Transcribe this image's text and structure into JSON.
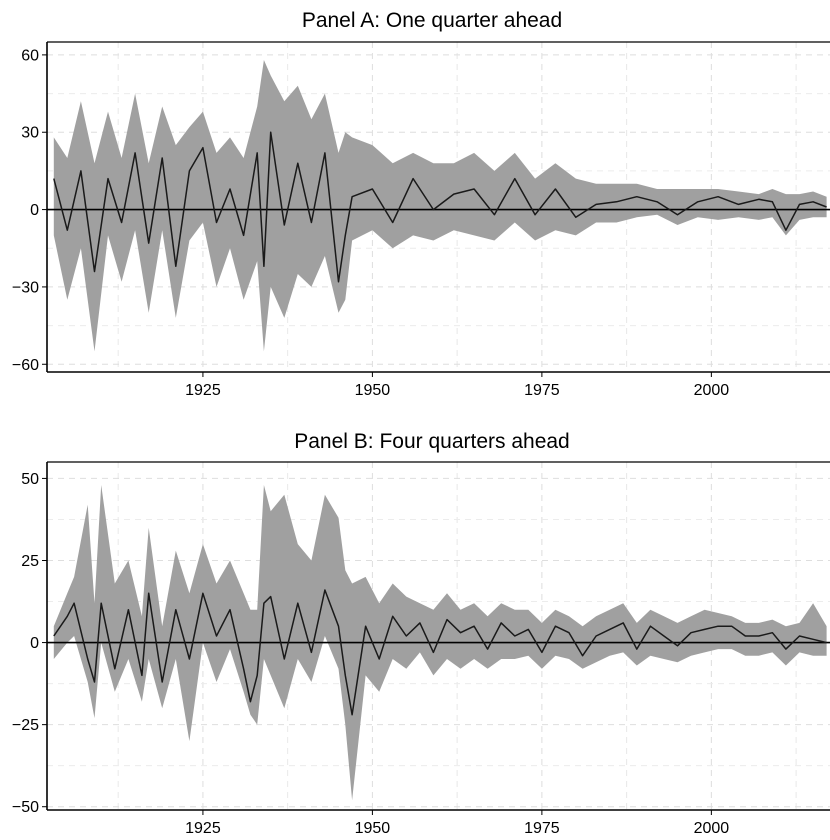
{
  "chart_data": [
    {
      "type": "area",
      "title": "Panel A: One quarter ahead",
      "xlabel": "",
      "ylabel": "",
      "xlim": [
        1902,
        2017.5
      ],
      "ylim": [
        -63,
        65
      ],
      "xticks": [
        "1925",
        "1950",
        "1975",
        "2000"
      ],
      "yticks": [
        "60",
        "30",
        "0",
        "−30",
        "−60"
      ],
      "ytick_values": [
        60,
        30,
        0,
        -30,
        -60
      ],
      "grid": true,
      "zero_line": 0,
      "band_color": "#a0a0a0",
      "line_color": "#1a1a1a",
      "series": [
        {
          "role": "point-forecast",
          "x": [
            1903,
            1905,
            1907,
            1909,
            1911,
            1913,
            1915,
            1917,
            1919,
            1921,
            1923,
            1925,
            1927,
            1929,
            1931,
            1933,
            1934,
            1935,
            1937,
            1939,
            1941,
            1943,
            1945,
            1946,
            1947,
            1950,
            1953,
            1956,
            1959,
            1962,
            1965,
            1968,
            1971,
            1974,
            1977,
            1980,
            1983,
            1986,
            1989,
            1992,
            1995,
            1998,
            2001,
            2004,
            2007,
            2009,
            2011,
            2013,
            2015,
            2017
          ],
          "values": [
            12,
            -8,
            15,
            -24,
            12,
            -5,
            22,
            -13,
            20,
            -22,
            15,
            24,
            -5,
            8,
            -10,
            22,
            -22,
            30,
            -6,
            18,
            -5,
            22,
            -28,
            -10,
            5,
            8,
            -5,
            12,
            0,
            6,
            8,
            -2,
            12,
            -2,
            8,
            -3,
            2,
            3,
            5,
            3,
            -2,
            3,
            5,
            2,
            4,
            3,
            -8,
            2,
            3,
            1
          ]
        },
        {
          "role": "band-upper",
          "x": [
            1903,
            1905,
            1907,
            1909,
            1911,
            1913,
            1915,
            1917,
            1919,
            1921,
            1923,
            1925,
            1927,
            1929,
            1931,
            1933,
            1934,
            1935,
            1937,
            1939,
            1941,
            1943,
            1945,
            1946,
            1947,
            1950,
            1953,
            1956,
            1959,
            1962,
            1965,
            1968,
            1971,
            1974,
            1977,
            1980,
            1983,
            1986,
            1989,
            1992,
            1995,
            1998,
            2001,
            2004,
            2007,
            2009,
            2011,
            2013,
            2015,
            2017
          ],
          "values": [
            28,
            20,
            42,
            18,
            38,
            20,
            45,
            18,
            40,
            25,
            32,
            38,
            22,
            28,
            20,
            40,
            58,
            52,
            42,
            48,
            35,
            45,
            22,
            30,
            28,
            25,
            18,
            22,
            18,
            18,
            22,
            15,
            22,
            12,
            18,
            12,
            10,
            10,
            10,
            8,
            8,
            8,
            8,
            7,
            6,
            8,
            6,
            6,
            7,
            5
          ]
        },
        {
          "role": "band-lower",
          "x": [
            1903,
            1905,
            1907,
            1909,
            1911,
            1913,
            1915,
            1917,
            1919,
            1921,
            1923,
            1925,
            1927,
            1929,
            1931,
            1933,
            1934,
            1935,
            1937,
            1939,
            1941,
            1943,
            1945,
            1946,
            1947,
            1950,
            1953,
            1956,
            1959,
            1962,
            1965,
            1968,
            1971,
            1974,
            1977,
            1980,
            1983,
            1986,
            1989,
            1992,
            1995,
            1998,
            2001,
            2004,
            2007,
            2009,
            2011,
            2013,
            2015,
            2017
          ],
          "values": [
            -10,
            -35,
            -15,
            -55,
            -10,
            -28,
            -8,
            -40,
            -8,
            -42,
            -12,
            -5,
            -30,
            -15,
            -35,
            -20,
            -55,
            -30,
            -42,
            -25,
            -30,
            -18,
            -40,
            -35,
            -12,
            -8,
            -15,
            -10,
            -12,
            -8,
            -10,
            -12,
            -5,
            -12,
            -8,
            -10,
            -5,
            -5,
            -3,
            -2,
            -6,
            -3,
            -4,
            -3,
            -4,
            -3,
            -10,
            -4,
            -3,
            -3
          ]
        }
      ]
    },
    {
      "type": "area",
      "title": "Panel B: Four quarters ahead",
      "xlabel": "",
      "ylabel": "",
      "xlim": [
        1902,
        2017.5
      ],
      "ylim": [
        -51,
        55
      ],
      "xticks": [
        "1925",
        "1950",
        "1975",
        "2000"
      ],
      "yticks": [
        "50",
        "25",
        "0",
        "−25",
        "−50"
      ],
      "ytick_values": [
        50,
        25,
        0,
        -25,
        -50
      ],
      "grid": true,
      "zero_line": 0,
      "band_color": "#a0a0a0",
      "line_color": "#1a1a1a",
      "series": [
        {
          "role": "point-forecast",
          "x": [
            1903,
            1905,
            1906,
            1908,
            1909,
            1910,
            1912,
            1914,
            1916,
            1917,
            1919,
            1921,
            1923,
            1925,
            1927,
            1929,
            1931,
            1932,
            1933,
            1934,
            1935,
            1937,
            1939,
            1941,
            1943,
            1945,
            1946,
            1947,
            1949,
            1951,
            1953,
            1955,
            1957,
            1959,
            1961,
            1963,
            1965,
            1967,
            1969,
            1971,
            1973,
            1975,
            1977,
            1979,
            1981,
            1983,
            1985,
            1987,
            1989,
            1991,
            1993,
            1995,
            1997,
            1999,
            2001,
            2003,
            2005,
            2007,
            2009,
            2011,
            2013,
            2015,
            2017
          ],
          "values": [
            2,
            8,
            12,
            -5,
            -12,
            12,
            -8,
            10,
            -10,
            15,
            -12,
            10,
            -5,
            15,
            2,
            10,
            -8,
            -18,
            -10,
            12,
            14,
            -5,
            12,
            -3,
            16,
            5,
            -10,
            -22,
            5,
            -5,
            8,
            2,
            6,
            -3,
            7,
            3,
            5,
            -2,
            6,
            2,
            4,
            -3,
            5,
            3,
            -4,
            2,
            4,
            6,
            -2,
            5,
            2,
            -1,
            3,
            4,
            5,
            5,
            2,
            2,
            3,
            -2,
            2,
            1,
            0
          ]
        },
        {
          "role": "band-upper",
          "x": [
            1903,
            1905,
            1906,
            1908,
            1909,
            1910,
            1912,
            1914,
            1916,
            1917,
            1919,
            1921,
            1923,
            1925,
            1927,
            1929,
            1931,
            1932,
            1933,
            1934,
            1935,
            1937,
            1939,
            1941,
            1943,
            1945,
            1946,
            1947,
            1949,
            1951,
            1953,
            1955,
            1957,
            1959,
            1961,
            1963,
            1965,
            1967,
            1969,
            1971,
            1973,
            1975,
            1977,
            1979,
            1981,
            1983,
            1985,
            1987,
            1989,
            1991,
            1993,
            1995,
            1997,
            1999,
            2001,
            2003,
            2005,
            2007,
            2009,
            2011,
            2013,
            2015,
            2017
          ],
          "values": [
            5,
            15,
            20,
            42,
            12,
            48,
            18,
            25,
            8,
            35,
            5,
            28,
            15,
            30,
            18,
            25,
            15,
            10,
            10,
            48,
            40,
            45,
            30,
            25,
            45,
            38,
            22,
            18,
            20,
            12,
            18,
            14,
            12,
            10,
            15,
            10,
            12,
            8,
            12,
            10,
            10,
            6,
            10,
            8,
            5,
            8,
            10,
            12,
            6,
            10,
            8,
            6,
            8,
            10,
            9,
            8,
            6,
            6,
            7,
            5,
            6,
            12,
            5
          ]
        },
        {
          "role": "band-lower",
          "x": [
            1903,
            1905,
            1906,
            1908,
            1909,
            1910,
            1912,
            1914,
            1916,
            1917,
            1919,
            1921,
            1923,
            1925,
            1927,
            1929,
            1931,
            1932,
            1933,
            1934,
            1935,
            1937,
            1939,
            1941,
            1943,
            1945,
            1946,
            1947,
            1949,
            1951,
            1953,
            1955,
            1957,
            1959,
            1961,
            1963,
            1965,
            1967,
            1969,
            1971,
            1973,
            1975,
            1977,
            1979,
            1981,
            1983,
            1985,
            1987,
            1989,
            1991,
            1993,
            1995,
            1997,
            1999,
            2001,
            2003,
            2005,
            2007,
            2009,
            2011,
            2013,
            2015,
            2017
          ],
          "values": [
            -5,
            0,
            2,
            -12,
            -23,
            0,
            -15,
            -5,
            -18,
            -5,
            -20,
            -5,
            -30,
            0,
            -12,
            -2,
            -15,
            -22,
            -25,
            -5,
            -10,
            -20,
            -5,
            -12,
            2,
            -8,
            -25,
            -48,
            -10,
            -15,
            -5,
            -8,
            -3,
            -10,
            -5,
            -8,
            -5,
            -8,
            -5,
            -5,
            -4,
            -8,
            -4,
            -5,
            -8,
            -6,
            -4,
            -3,
            -7,
            -4,
            -5,
            -6,
            -4,
            -3,
            -2,
            -2,
            -4,
            -4,
            -3,
            -7,
            -3,
            -4,
            -4
          ]
        }
      ]
    }
  ]
}
